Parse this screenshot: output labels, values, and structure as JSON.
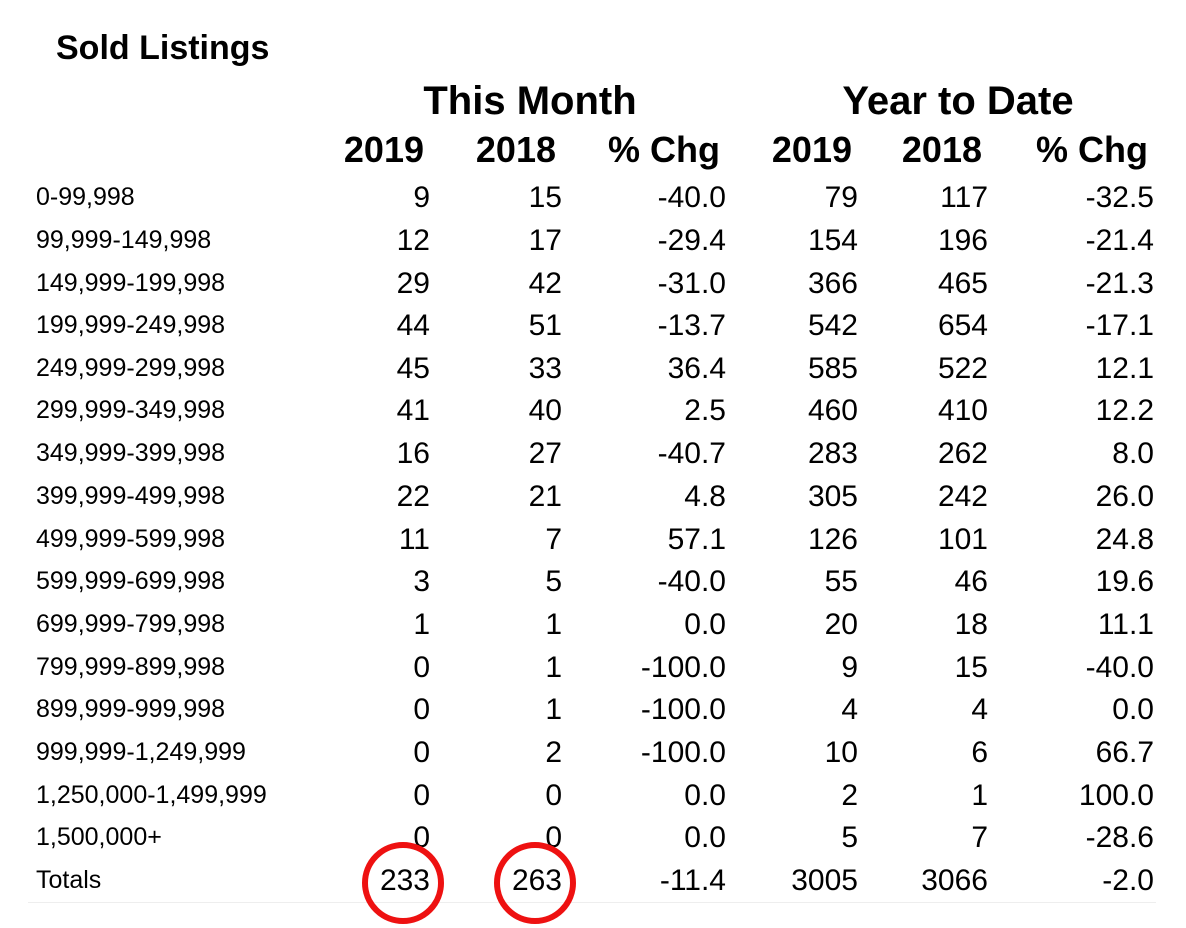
{
  "title": "Sold Listings",
  "groups": {
    "this_month": "This Month",
    "year_to_date": "Year to Date"
  },
  "columns": [
    "2019",
    "2018",
    "% Chg",
    "2019",
    "2018",
    "% Chg"
  ],
  "rows": [
    {
      "label": "0-99,998",
      "values": [
        "9",
        "15",
        "-40.0",
        "79",
        "117",
        "-32.5"
      ]
    },
    {
      "label": "99,999-149,998",
      "values": [
        "12",
        "17",
        "-29.4",
        "154",
        "196",
        "-21.4"
      ]
    },
    {
      "label": "149,999-199,998",
      "values": [
        "29",
        "42",
        "-31.0",
        "366",
        "465",
        "-21.3"
      ]
    },
    {
      "label": "199,999-249,998",
      "values": [
        "44",
        "51",
        "-13.7",
        "542",
        "654",
        "-17.1"
      ]
    },
    {
      "label": "249,999-299,998",
      "values": [
        "45",
        "33",
        "36.4",
        "585",
        "522",
        "12.1"
      ]
    },
    {
      "label": "299,999-349,998",
      "values": [
        "41",
        "40",
        "2.5",
        "460",
        "410",
        "12.2"
      ]
    },
    {
      "label": "349,999-399,998",
      "values": [
        "16",
        "27",
        "-40.7",
        "283",
        "262",
        "8.0"
      ]
    },
    {
      "label": "399,999-499,998",
      "values": [
        "22",
        "21",
        "4.8",
        "305",
        "242",
        "26.0"
      ]
    },
    {
      "label": "499,999-599,998",
      "values": [
        "11",
        "7",
        "57.1",
        "126",
        "101",
        "24.8"
      ]
    },
    {
      "label": "599,999-699,998",
      "values": [
        "3",
        "5",
        "-40.0",
        "55",
        "46",
        "19.6"
      ]
    },
    {
      "label": "699,999-799,998",
      "values": [
        "1",
        "1",
        "0.0",
        "20",
        "18",
        "11.1"
      ]
    },
    {
      "label": "799,999-899,998",
      "values": [
        "0",
        "1",
        "-100.0",
        "9",
        "15",
        "-40.0"
      ]
    },
    {
      "label": "899,999-999,998",
      "values": [
        "0",
        "1",
        "-100.0",
        "4",
        "4",
        "0.0"
      ]
    },
    {
      "label": "999,999-1,249,999",
      "values": [
        "0",
        "2",
        "-100.0",
        "10",
        "6",
        "66.7"
      ]
    },
    {
      "label": "1,250,000-1,499,999",
      "values": [
        "0",
        "0",
        "0.0",
        "2",
        "1",
        "100.0"
      ]
    },
    {
      "label": "1,500,000+",
      "values": [
        "0",
        "0",
        "0.0",
        "5",
        "7",
        "-28.6"
      ]
    }
  ],
  "totals": {
    "label": "Totals",
    "values": [
      "233",
      "263",
      "-11.4",
      "3005",
      "3066",
      "-2.0"
    ]
  },
  "highlight_color": "#ee1111"
}
